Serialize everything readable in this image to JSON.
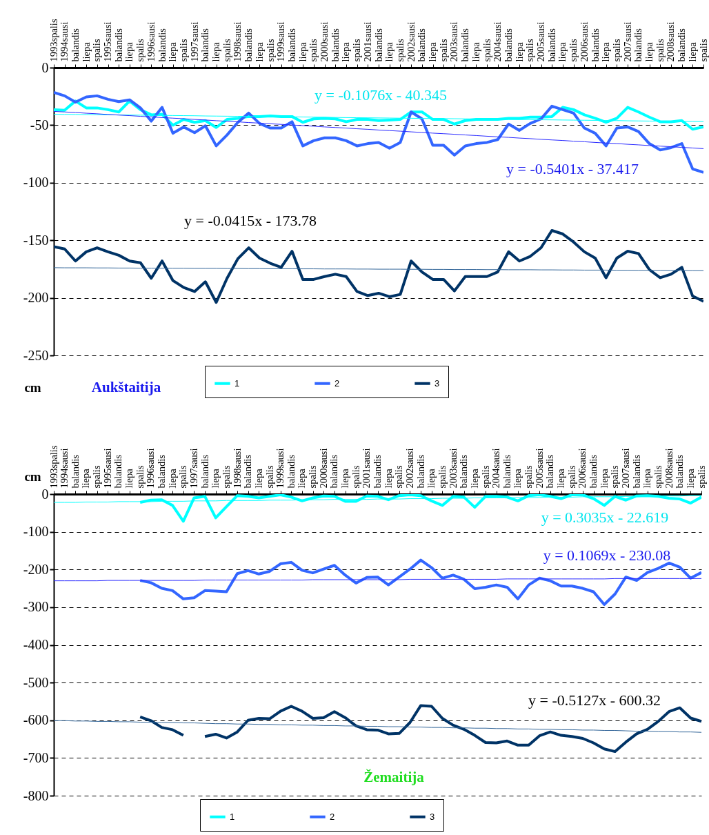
{
  "chart_data": [
    {
      "type": "line",
      "title": "Aukštaitija",
      "ylabel": "cm",
      "categories": [
        "1993spalis",
        "1994sausi",
        "balandis",
        "liepa",
        "spalis",
        "1995sausi",
        "balandis",
        "liepa",
        "spalis",
        "1996sausi",
        "balandis",
        "liepa",
        "spalis",
        "1997sausi",
        "balandis",
        "liepa",
        "spalis",
        "1998sausi",
        "balandis",
        "liepa",
        "spalis",
        "1999sausi",
        "balandis",
        "liepa",
        "spalis",
        "2000sausi",
        "balandis",
        "liepa",
        "spalis",
        "2001sausi",
        "balandis",
        "liepa",
        "spalis",
        "2002sausi",
        "balandis",
        "liepa",
        "spalis",
        "2003sausi",
        "balandis",
        "liepa",
        "spalis",
        "2004sausi",
        "balandis",
        "liepa",
        "spalis",
        "2005sausi",
        "balandis",
        "liepa",
        "spalis",
        "2006sausi",
        "balandis",
        "liepa",
        "spalis",
        "2007sausi",
        "balandis",
        "liepa",
        "spalis",
        "2008sausi",
        "balandis",
        "liepa",
        "spalis"
      ],
      "series": [
        {
          "name": "1",
          "color": "#00ffff",
          "values": [
            -36.5,
            -37,
            -29,
            -35,
            -35,
            -36.5,
            -38.5,
            -29,
            -36.5,
            -41,
            -40.5,
            -50,
            -45,
            -47.5,
            -46,
            -52,
            -45,
            -44,
            -42.5,
            -42.5,
            -42,
            -42.5,
            -42.5,
            -47.5,
            -44.5,
            -44,
            -44.5,
            -47,
            -45,
            -45,
            -46,
            -45.5,
            -45,
            -38.5,
            -38.5,
            -45,
            -45,
            -49,
            -46,
            -45,
            -45,
            -45,
            -44,
            -44,
            -43,
            -43,
            -42.5,
            -34.5,
            -36.5,
            -41,
            -44,
            -47.5,
            -44,
            -34.5,
            -38.5,
            -43,
            -47,
            -47,
            -46,
            -53.5,
            -51.5
          ]
        },
        {
          "name": "2",
          "color": "#3366ff",
          "values": [
            -21.5,
            -24.5,
            -30,
            -25.5,
            -24.5,
            -27.5,
            -29.5,
            -28,
            -35,
            -46.5,
            -34.5,
            -57,
            -51.5,
            -56.5,
            -50.5,
            -68,
            -58.5,
            -47.5,
            -39.5,
            -48.5,
            -52.5,
            -52.5,
            -47,
            -68,
            -63.5,
            -61,
            -61,
            -63.5,
            -68,
            -66,
            -65,
            -70,
            -65,
            -38.5,
            -44.5,
            -67.5,
            -67.5,
            -76,
            -68,
            -66,
            -65,
            -62.5,
            -49,
            -54.5,
            -48.5,
            -44.5,
            -33.5,
            -36.5,
            -39.5,
            -52.5,
            -57,
            -68,
            -52.5,
            -51.5,
            -55.5,
            -66,
            -71.5,
            -69.5,
            -66,
            -88,
            -91
          ]
        },
        {
          "name": "3",
          "color": "#003366",
          "values": [
            -155.5,
            -157.5,
            -168,
            -160,
            -156.5,
            -160,
            -163,
            -168,
            -169.5,
            -183,
            -168,
            -185,
            -191,
            -194.5,
            -186,
            -204,
            -183,
            -166,
            -156.5,
            -165.5,
            -170,
            -173.5,
            -159.5,
            -184,
            -184,
            -181.5,
            -179.5,
            -181.5,
            -194.5,
            -198,
            -196,
            -199,
            -197,
            -168,
            -177.5,
            -184,
            -184,
            -194,
            -181.5,
            -181.5,
            -181.5,
            -177.5,
            -160,
            -168,
            -164,
            -156.5,
            -141.5,
            -144.5,
            -151.5,
            -160,
            -165.5,
            -182.5,
            -165.5,
            -159.5,
            -161.5,
            -175.5,
            -182.5,
            -179.5,
            -173.5,
            -198.5,
            -203
          ]
        },
        {
          "color": "#00ffff",
          "values": [
            -40.5,
            -40.6,
            -40.7,
            -40.8,
            -40.9,
            -41.0,
            -41.1,
            -41.2,
            -41.3,
            -41.4,
            -41.5,
            -41.6,
            -41.7,
            -41.8,
            -42.0,
            -42.1,
            -42.2,
            -42.3,
            -42.4,
            -42.5,
            -42.6,
            -42.7,
            -42.8,
            -42.9,
            -43.0,
            -43.1,
            -43.3,
            -43.4,
            -43.5,
            -43.6,
            -43.7,
            -43.8,
            -43.9,
            -44.0,
            -44.1,
            -44.2,
            -44.3,
            -44.4,
            -44.5,
            -44.6,
            -44.8,
            -44.9,
            -45.0,
            -45.1,
            -45.2,
            -45.3,
            -45.4,
            -45.5,
            -45.6,
            -45.7,
            -45.8,
            -45.9,
            -46.0,
            -46.2,
            -46.3,
            -46.4,
            -46.5,
            -46.6,
            -46.7,
            -46.8,
            -46.9
          ]
        },
        {
          "color": "#2a2aff",
          "values": [
            -38.0,
            -38.5,
            -39.0,
            -39.6,
            -40.1,
            -40.7,
            -41.2,
            -41.7,
            -42.3,
            -42.8,
            -43.4,
            -43.9,
            -44.4,
            -45.0,
            -45.5,
            -46.1,
            -46.6,
            -47.1,
            -47.7,
            -48.2,
            -48.8,
            -49.3,
            -49.8,
            -50.4,
            -50.9,
            -51.5,
            -52.0,
            -52.5,
            -53.1,
            -53.6,
            -54.2,
            -54.7,
            -55.2,
            -55.8,
            -56.3,
            -56.9,
            -57.4,
            -57.9,
            -58.5,
            -59.0,
            -59.6,
            -60.1,
            -60.6,
            -61.2,
            -61.7,
            -62.3,
            -62.8,
            -63.3,
            -63.9,
            -64.4,
            -65.0,
            -65.5,
            -66.0,
            -66.6,
            -67.1,
            -67.7,
            -68.2,
            -68.7,
            -69.3,
            -69.8,
            -70.4
          ]
        },
        {
          "color": "#336699",
          "values": [
            -173.8,
            -173.9,
            -173.9,
            -173.9,
            -174.0,
            -174.0,
            -174.1,
            -174.1,
            -174.2,
            -174.2,
            -174.2,
            -174.3,
            -174.3,
            -174.4,
            -174.4,
            -174.4,
            -174.5,
            -174.5,
            -174.6,
            -174.6,
            -174.7,
            -174.7,
            -174.7,
            -174.8,
            -174.8,
            -174.9,
            -174.9,
            -174.9,
            -175.0,
            -175.0,
            -175.1,
            -175.1,
            -175.1,
            -175.2,
            -175.2,
            -175.3,
            -175.3,
            -175.4,
            -175.4,
            -175.4,
            -175.5,
            -175.5,
            -175.6,
            -175.6,
            -175.6,
            -175.7,
            -175.7,
            -175.8,
            -175.8,
            -175.9,
            -175.9,
            -175.9,
            -176.0,
            -176.0,
            -176.1,
            -176.1,
            -176.1,
            -176.2,
            -176.2,
            -176.3,
            -176.3
          ]
        }
      ],
      "ylim": [
        -250,
        0
      ],
      "yticks": [
        0,
        -50,
        -100,
        -150,
        -200,
        -250
      ],
      "grid": "y",
      "legend": "bottom",
      "annotations": [
        "y = -0.1076x - 40.345",
        "y = -0.5401x - 37.417",
        "y = -0.0415x - 173.78"
      ]
    },
    {
      "type": "line",
      "title": "Žemaitija",
      "ylabel": "cm",
      "categories": [
        "1993spalis",
        "1994sausi",
        "balandis",
        "liepa",
        "spalis",
        "1995sausi",
        "balandis",
        "liepa",
        "spalis",
        "1996sausi",
        "balandis",
        "liepa",
        "spalis",
        "1997sausi",
        "balandis",
        "liepa",
        "spalis",
        "1998sausi",
        "balandis",
        "liepa",
        "spalis",
        "1999sausi",
        "balandis",
        "liepa",
        "spalis",
        "2000sausi",
        "balandis",
        "liepa",
        "spalis",
        "2001sausi",
        "balandis",
        "liepa",
        "spalis",
        "2002sausi",
        "balandis",
        "liepa",
        "spalis",
        "2003sausi",
        "balandis",
        "liepa",
        "spalis",
        "2004sausi",
        "balandis",
        "liepa",
        "spalis",
        "2005sausi",
        "balandis",
        "liepa",
        "spalis",
        "2006sausi",
        "balandis",
        "liepa",
        "spalis",
        "2007sausi",
        "balandis",
        "liepa",
        "spalis",
        "2008sausi",
        "balandis",
        "liepa",
        "spalis"
      ],
      "series": [
        {
          "name": "1",
          "color": "#00ffff",
          "values": [
            null,
            null,
            null,
            null,
            null,
            null,
            null,
            null,
            -22,
            -16,
            -15,
            -30,
            -72,
            -10,
            -6,
            -63,
            -33,
            -4,
            -6,
            -10,
            -6,
            -2,
            -8,
            -18,
            -10,
            -5,
            -6,
            -19,
            -19,
            -5,
            -6,
            -15,
            -4,
            -2,
            -4,
            -18,
            -30,
            -6,
            -8,
            -35,
            -6,
            -6,
            -8,
            -18,
            -4,
            -2,
            -6,
            -12,
            -2,
            -2,
            -12,
            -30,
            -6,
            -16,
            -5,
            -4,
            -6,
            -11,
            -13,
            -24,
            -8
          ]
        },
        {
          "name": "2",
          "color": "#3366ff",
          "values": [
            null,
            null,
            null,
            null,
            null,
            null,
            null,
            null,
            -229,
            -235,
            -250,
            -256,
            -278,
            -275,
            -256,
            -257,
            -259,
            -211,
            -203,
            -212,
            -205,
            -185,
            -181,
            -202,
            -209,
            -199,
            -189,
            -215,
            -236,
            -221,
            -220,
            -241,
            -220,
            -199,
            -175,
            -195,
            -223,
            -215,
            -226,
            -251,
            -247,
            -241,
            -247,
            -278,
            -241,
            -223,
            -230,
            -244,
            -244,
            -250,
            -259,
            -293,
            -265,
            -220,
            -229,
            -208,
            -197,
            -183,
            -194,
            -223,
            -208
          ]
        },
        {
          "name": "3",
          "color": "#003366",
          "values": [
            null,
            null,
            null,
            null,
            null,
            null,
            null,
            null,
            -591,
            -601,
            -619,
            -625,
            -640,
            null,
            -643,
            -637,
            -647,
            -631,
            -600,
            -595,
            -596,
            -576,
            -563,
            -576,
            -595,
            -593,
            -577,
            -593,
            -615,
            -625,
            -626,
            -636,
            -635,
            -606,
            -561,
            -563,
            -595,
            -613,
            -624,
            -640,
            -659,
            -660,
            -655,
            -666,
            -666,
            -641,
            -631,
            -640,
            -643,
            -648,
            -660,
            -676,
            -683,
            -658,
            -636,
            -624,
            -603,
            -577,
            -567,
            -594,
            -603
          ]
        },
        {
          "color": "#00ffff",
          "values": [
            -22,
            -22,
            -22,
            -21,
            -21,
            -21,
            -20,
            -20,
            -20,
            -20,
            -19,
            -19,
            -19,
            -18,
            -18,
            -18,
            -17,
            -17,
            -17,
            -17,
            -16,
            -16,
            -16,
            -15,
            -15,
            -15,
            -14,
            -14,
            -14,
            -14,
            -13,
            -13,
            -13,
            -12,
            -12,
            -12,
            -11,
            -11,
            -11,
            -10,
            -10,
            -10,
            -10,
            -9,
            -9,
            -9,
            -8,
            -8,
            -8,
            -7,
            -7,
            -7,
            -7,
            -6,
            -6,
            -6,
            -5,
            -5,
            -5,
            -4,
            -4
          ]
        },
        {
          "color": "#2a2aff",
          "values": [
            -230,
            -230,
            -230,
            -230,
            -230,
            -229,
            -229,
            -229,
            -229,
            -229,
            -229,
            -229,
            -229,
            -229,
            -228,
            -228,
            -228,
            -228,
            -228,
            -228,
            -228,
            -228,
            -228,
            -228,
            -227,
            -227,
            -227,
            -227,
            -227,
            -227,
            -227,
            -227,
            -227,
            -226,
            -226,
            -226,
            -226,
            -226,
            -226,
            -226,
            -226,
            -226,
            -225,
            -225,
            -225,
            -225,
            -225,
            -225,
            -225,
            -225,
            -225,
            -225,
            -224,
            -224,
            -224,
            -224,
            -224,
            -224,
            -224,
            -224,
            -224
          ]
        },
        {
          "color": "#336699",
          "values": [
            -601,
            -601,
            -602,
            -602,
            -603,
            -603,
            -604,
            -604,
            -605,
            -605,
            -606,
            -606,
            -607,
            -607,
            -608,
            -609,
            -609,
            -610,
            -610,
            -611,
            -611,
            -612,
            -612,
            -613,
            -613,
            -614,
            -614,
            -615,
            -615,
            -616,
            -616,
            -617,
            -617,
            -618,
            -618,
            -619,
            -619,
            -620,
            -620,
            -621,
            -621,
            -622,
            -622,
            -623,
            -623,
            -624,
            -624,
            -625,
            -625,
            -626,
            -626,
            -627,
            -627,
            -628,
            -629,
            -629,
            -630,
            -630,
            -631,
            -631,
            -632
          ]
        }
      ],
      "ylim": [
        -800,
        0
      ],
      "yticks": [
        0,
        -100,
        -200,
        -300,
        -400,
        -500,
        -600,
        -700,
        -800
      ],
      "grid": "y",
      "legend": "bottom",
      "annotations": [
        "y = 0.3035x - 22.619",
        "y = 0.1069x - 230.08",
        "y = -0.5127x - 600.32"
      ]
    }
  ]
}
